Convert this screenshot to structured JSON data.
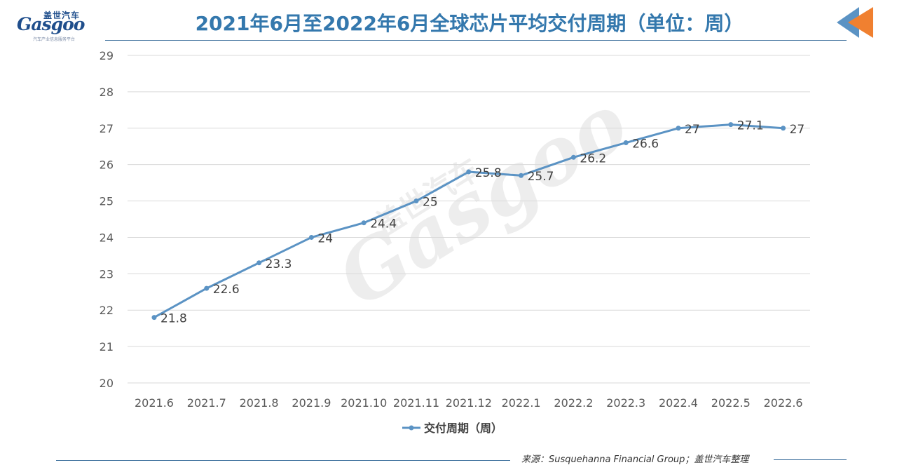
{
  "logo": {
    "cn": "盖世汽车",
    "en": "Gasgoo",
    "sub": "汽车产业信息服务平台"
  },
  "watermark": {
    "cn": "盖世汽车",
    "en": "Gasgoo"
  },
  "title": "2021年6月至2022年6月全球芯片平均交付周期（单位：周）",
  "source": "来源：Susquehanna Financial Group；盖世汽车整理",
  "colors": {
    "series": "#5b93c4",
    "title": "#3478ad",
    "grid": "#d9d9d9",
    "axis_text": "#595959"
  },
  "chart_data": {
    "type": "line",
    "title": "2021年6月至2022年6月全球芯片平均交付周期（单位：周）",
    "xlabel": "",
    "ylabel": "",
    "ylim": [
      20,
      29
    ],
    "yticks": [
      20,
      21,
      22,
      23,
      24,
      25,
      26,
      27,
      28,
      29
    ],
    "grid": true,
    "legend_position": "bottom",
    "categories": [
      "2021.6",
      "2021.7",
      "2021.8",
      "2021.9",
      "2021.10",
      "2021.11",
      "2021.12",
      "2022.1",
      "2022.2",
      "2022.3",
      "2022.4",
      "2022.5",
      "2022.6"
    ],
    "series": [
      {
        "name": "交付周期（周）",
        "values": [
          21.8,
          22.6,
          23.3,
          24,
          24.4,
          25,
          25.8,
          25.7,
          26.2,
          26.6,
          27,
          27.1,
          27
        ]
      }
    ]
  }
}
